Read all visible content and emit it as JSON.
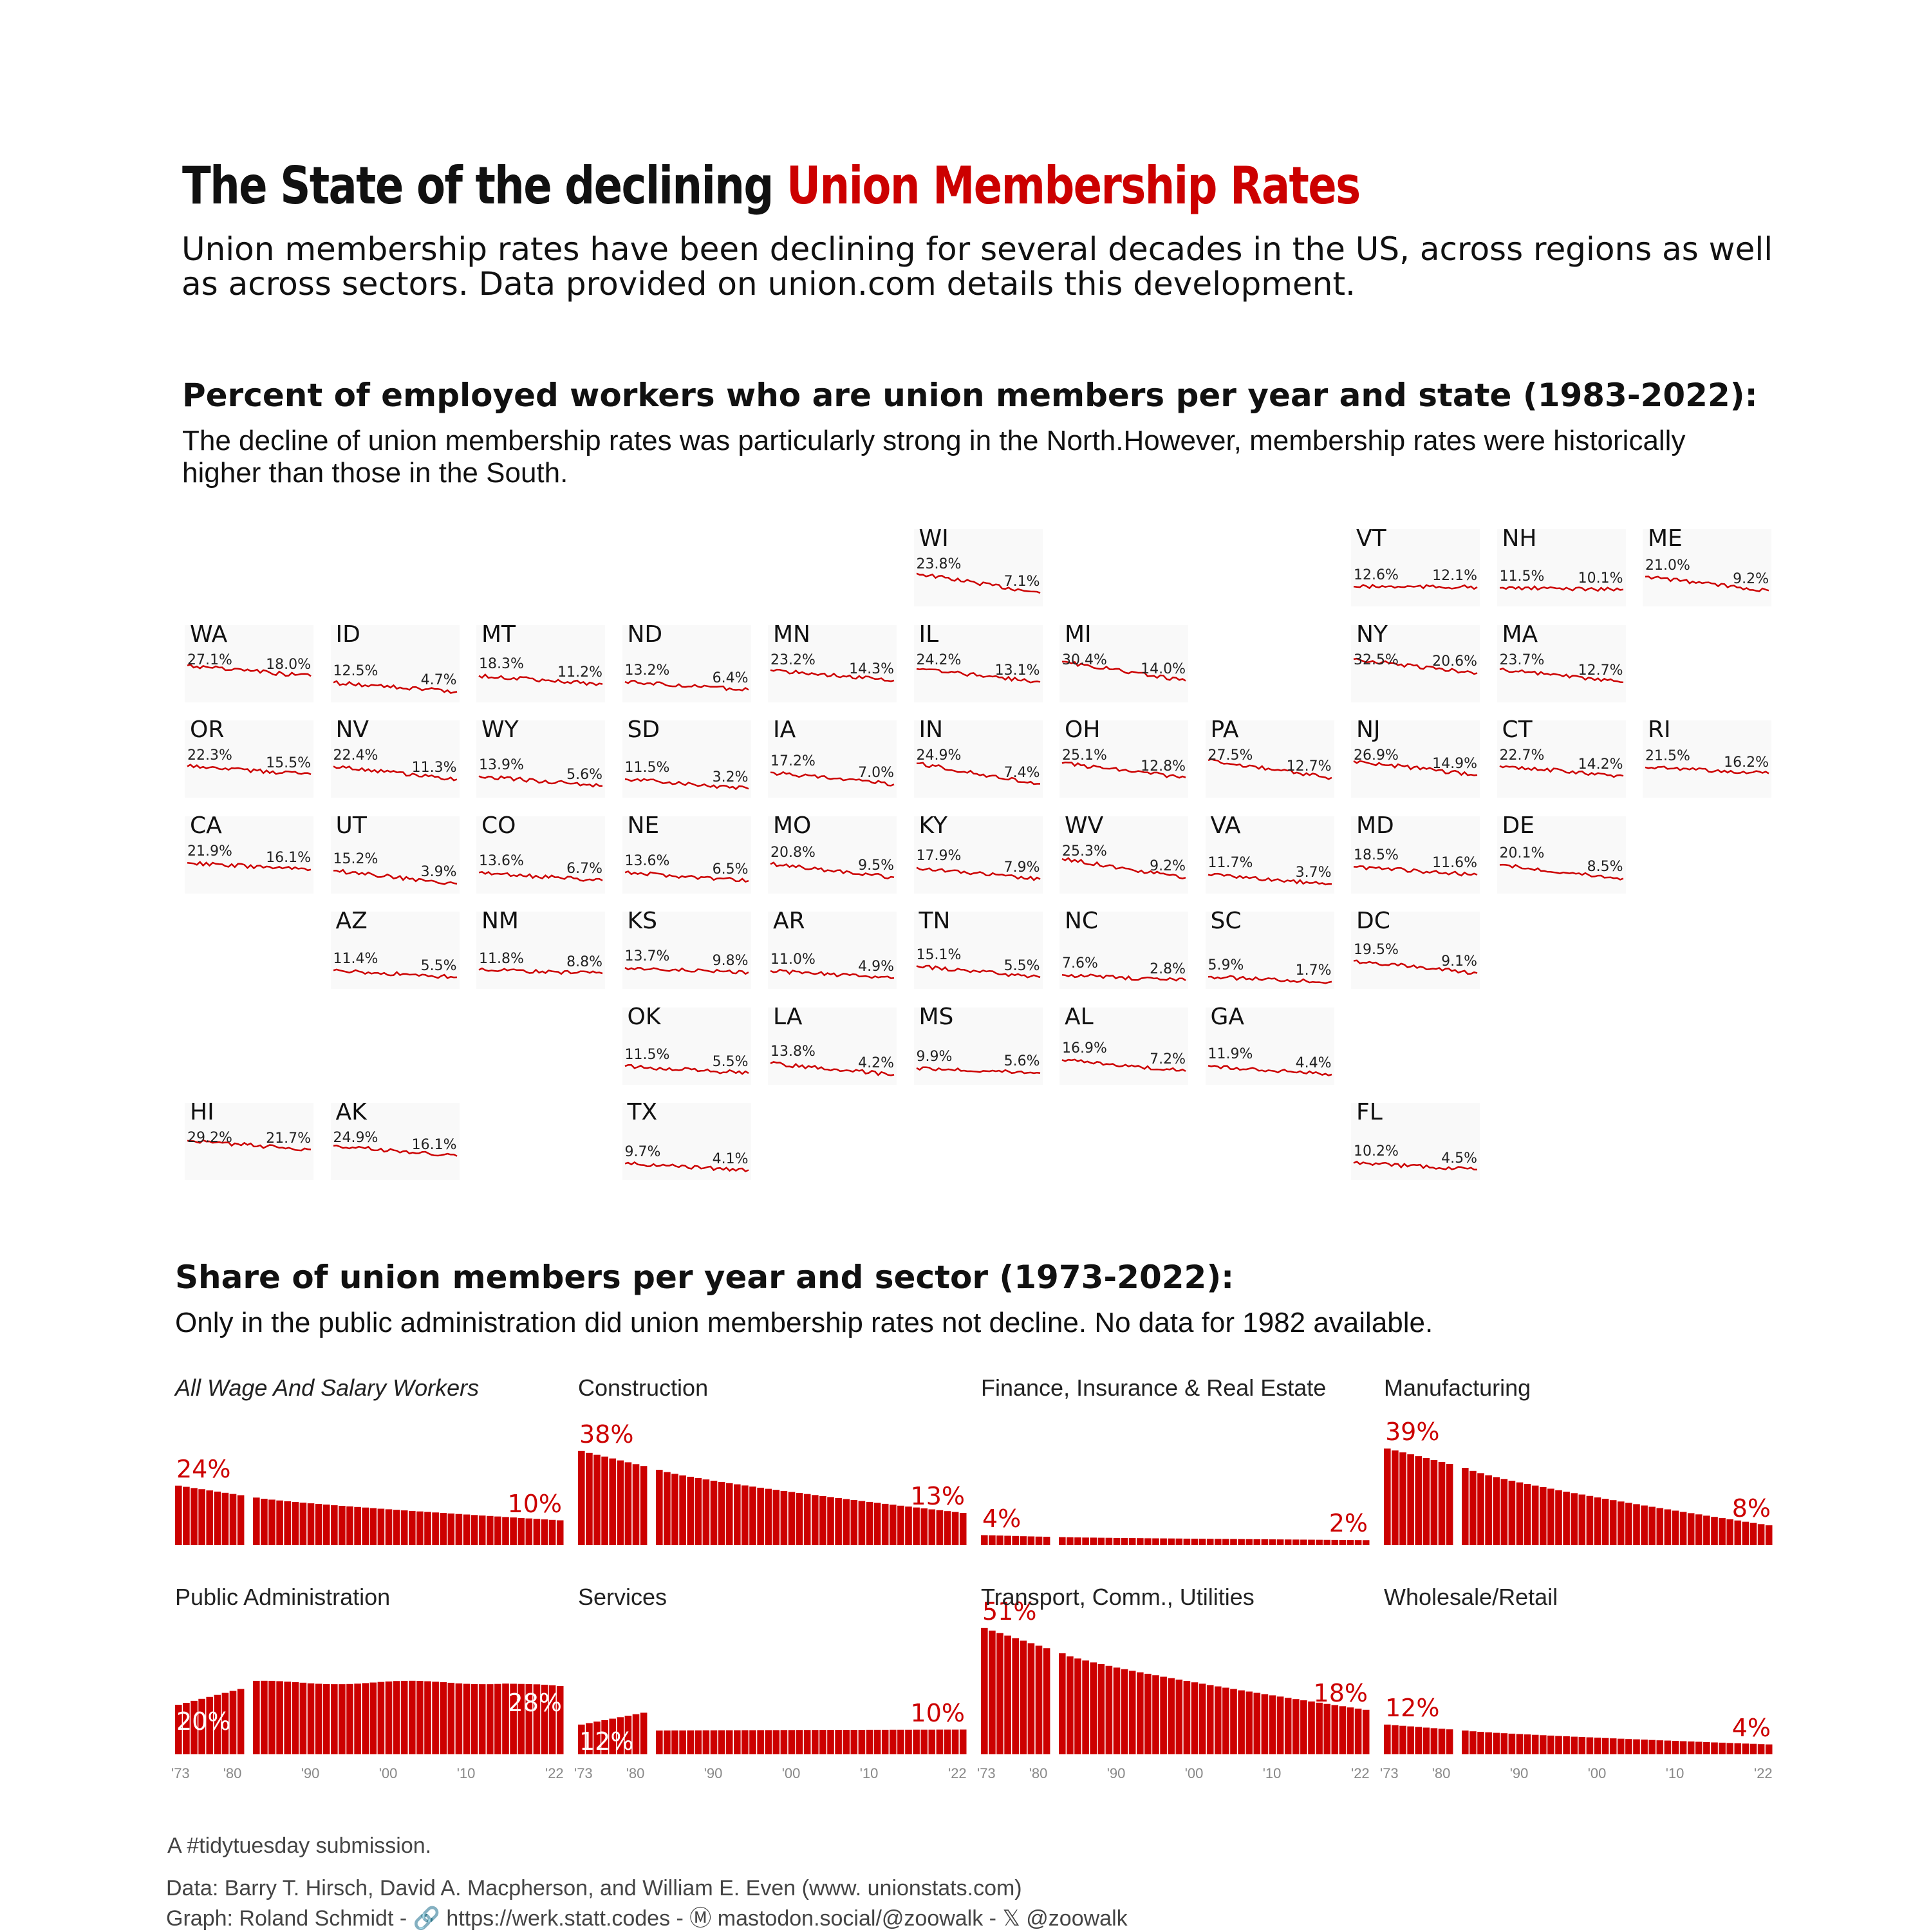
{
  "title": {
    "part1": "The State of the declining ",
    "part2": "Union Membership Rates"
  },
  "subtitle": "Union membership rates have been declining for several decades in the US, across regions as well as across sectors. Data provided on union.com details this development.",
  "section1": {
    "title": "Percent of employed workers who are union members per year and state (1983-2022):",
    "subtitle": "The decline of union membership rates was particularly strong in the North.However, membership rates were historically higher than those in the South."
  },
  "section2": {
    "title": "Share of union members per year and sector (1973-2022):",
    "subtitle": "Only in the public administration did union membership rates not decline. No data for 1982 available."
  },
  "colors": {
    "accent": "#cc0000",
    "tile_bg": "#f9f9f9",
    "bar": "#cc0000"
  },
  "chart_data": [
    {
      "type": "line",
      "years": [
        1983,
        2022
      ],
      "states": [
        {
          "abbr": "WI",
          "first": "23.8%",
          "last": "7.1%"
        },
        {
          "abbr": "VT",
          "first": "12.6%",
          "last": "12.1%"
        },
        {
          "abbr": "NH",
          "first": "11.5%",
          "last": "10.1%"
        },
        {
          "abbr": "ME",
          "first": "21.0%",
          "last": "9.2%"
        },
        {
          "abbr": "WA",
          "first": "27.1%",
          "last": "18.0%"
        },
        {
          "abbr": "ID",
          "first": "12.5%",
          "last": "4.7%"
        },
        {
          "abbr": "MT",
          "first": "18.3%",
          "last": "11.2%"
        },
        {
          "abbr": "ND",
          "first": "13.2%",
          "last": "6.4%"
        },
        {
          "abbr": "MN",
          "first": "23.2%",
          "last": "14.3%"
        },
        {
          "abbr": "IL",
          "first": "24.2%",
          "last": "13.1%"
        },
        {
          "abbr": "MI",
          "first": "30.4%",
          "last": "14.0%"
        },
        {
          "abbr": "NY",
          "first": "32.5%",
          "last": "20.6%"
        },
        {
          "abbr": "MA",
          "first": "23.7%",
          "last": "12.7%"
        },
        {
          "abbr": "OR",
          "first": "22.3%",
          "last": "15.5%"
        },
        {
          "abbr": "NV",
          "first": "22.4%",
          "last": "11.3%"
        },
        {
          "abbr": "WY",
          "first": "13.9%",
          "last": "5.6%"
        },
        {
          "abbr": "SD",
          "first": "11.5%",
          "last": "3.2%"
        },
        {
          "abbr": "IA",
          "first": "17.2%",
          "last": "7.0%"
        },
        {
          "abbr": "IN",
          "first": "24.9%",
          "last": "7.4%"
        },
        {
          "abbr": "OH",
          "first": "25.1%",
          "last": "12.8%"
        },
        {
          "abbr": "PA",
          "first": "27.5%",
          "last": "12.7%"
        },
        {
          "abbr": "NJ",
          "first": "26.9%",
          "last": "14.9%"
        },
        {
          "abbr": "CT",
          "first": "22.7%",
          "last": "14.2%"
        },
        {
          "abbr": "RI",
          "first": "21.5%",
          "last": "16.2%"
        },
        {
          "abbr": "CA",
          "first": "21.9%",
          "last": "16.1%"
        },
        {
          "abbr": "UT",
          "first": "15.2%",
          "last": "3.9%"
        },
        {
          "abbr": "CO",
          "first": "13.6%",
          "last": "6.7%"
        },
        {
          "abbr": "NE",
          "first": "13.6%",
          "last": "6.5%"
        },
        {
          "abbr": "MO",
          "first": "20.8%",
          "last": "9.5%"
        },
        {
          "abbr": "KY",
          "first": "17.9%",
          "last": "7.9%"
        },
        {
          "abbr": "WV",
          "first": "25.3%",
          "last": "9.2%"
        },
        {
          "abbr": "VA",
          "first": "11.7%",
          "last": "3.7%"
        },
        {
          "abbr": "MD",
          "first": "18.5%",
          "last": "11.6%"
        },
        {
          "abbr": "DE",
          "first": "20.1%",
          "last": "8.5%"
        },
        {
          "abbr": "AZ",
          "first": "11.4%",
          "last": "5.5%"
        },
        {
          "abbr": "NM",
          "first": "11.8%",
          "last": "8.8%"
        },
        {
          "abbr": "KS",
          "first": "13.7%",
          "last": "9.8%"
        },
        {
          "abbr": "AR",
          "first": "11.0%",
          "last": "4.9%"
        },
        {
          "abbr": "TN",
          "first": "15.1%",
          "last": "5.5%"
        },
        {
          "abbr": "NC",
          "first": "7.6%",
          "last": "2.8%"
        },
        {
          "abbr": "SC",
          "first": "5.9%",
          "last": "1.7%"
        },
        {
          "abbr": "DC",
          "first": "19.5%",
          "last": "9.1%"
        },
        {
          "abbr": "OK",
          "first": "11.5%",
          "last": "5.5%"
        },
        {
          "abbr": "LA",
          "first": "13.8%",
          "last": "4.2%"
        },
        {
          "abbr": "MS",
          "first": "9.9%",
          "last": "5.6%"
        },
        {
          "abbr": "AL",
          "first": "16.9%",
          "last": "7.2%"
        },
        {
          "abbr": "GA",
          "first": "11.9%",
          "last": "4.4%"
        },
        {
          "abbr": "HI",
          "first": "29.2%",
          "last": "21.7%"
        },
        {
          "abbr": "AK",
          "first": "24.9%",
          "last": "16.1%"
        },
        {
          "abbr": "TX",
          "first": "9.7%",
          "last": "4.1%"
        },
        {
          "abbr": "FL",
          "first": "10.2%",
          "last": "4.5%"
        }
      ]
    },
    {
      "type": "bar",
      "x_range": [
        1973,
        2022
      ],
      "missing_year": 1982,
      "x_tick_labels": [
        "'73",
        "'80",
        "'90",
        "'00",
        "'10",
        "'22"
      ],
      "ylim": [
        0,
        52
      ],
      "panels": [
        {
          "name": "All Wage And Salary Workers",
          "first_label": "24%",
          "last_label": "10%",
          "start": 24,
          "end": 10
        },
        {
          "name": "Construction",
          "first_label": "38%",
          "last_label": "13%",
          "start": 38,
          "end": 13
        },
        {
          "name": "Finance, Insurance & Real Estate",
          "first_label": "4%",
          "last_label": "2%",
          "start": 4,
          "end": 2
        },
        {
          "name": "Manufacturing",
          "first_label": "39%",
          "last_label": "8%",
          "start": 39,
          "end": 8
        },
        {
          "name": "Public Administration",
          "first_label": "20%",
          "last_label": "28%",
          "start": 20,
          "end": 28
        },
        {
          "name": "Services",
          "first_label": "12%",
          "last_label": "10%",
          "start": 12,
          "end": 10
        },
        {
          "name": "Transport, Comm., Utilities",
          "first_label": "51%",
          "last_label": "18%",
          "start": 51,
          "end": 18
        },
        {
          "name": "Wholesale/Retail",
          "first_label": "12%",
          "last_label": "4%",
          "start": 12,
          "end": 4
        }
      ]
    }
  ],
  "footer": {
    "line1": "A #tidytuesday submission.",
    "line2": "Data: Barry T. Hirsch, David A. Macpherson, and William E. Even (www. unionstats.com)",
    "line3": "Graph: Roland Schmidt - 🔗 https://werk.statt.codes - Ⓜ mastodon.social/@zoowalk - 𝕏 @zoowalk"
  }
}
